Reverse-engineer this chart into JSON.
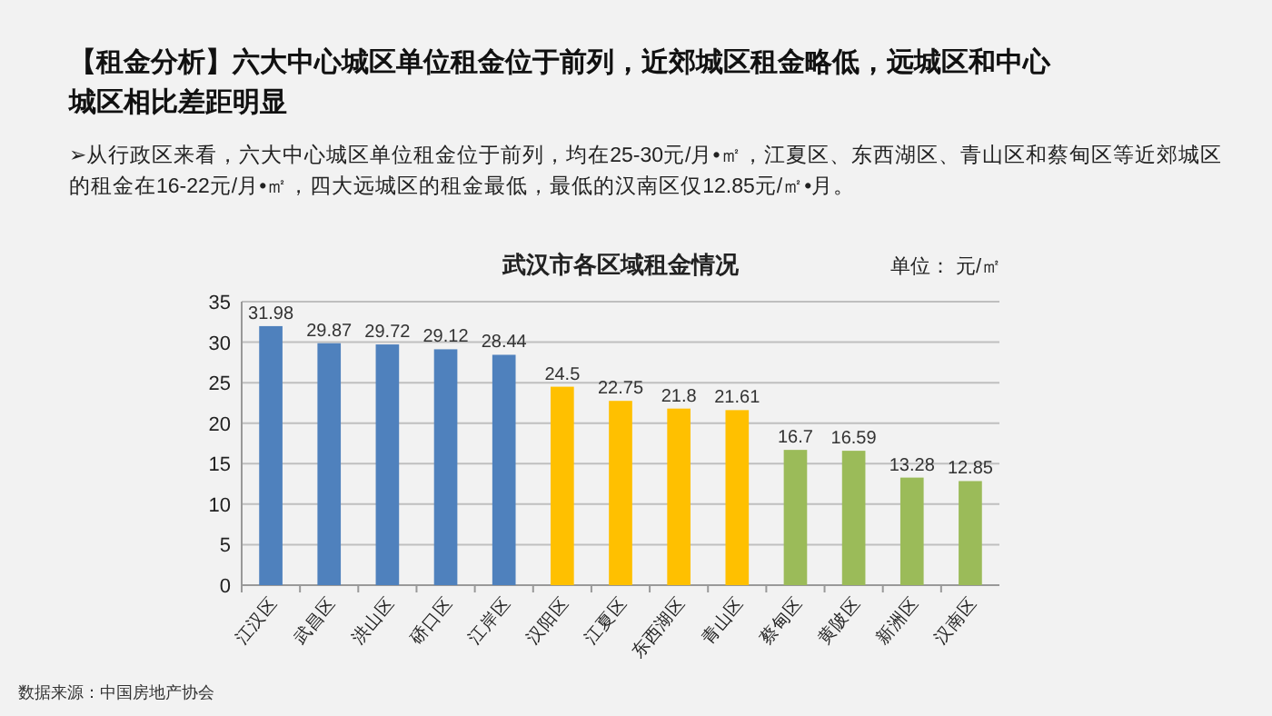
{
  "chart_data": {
    "type": "bar",
    "title": "武汉市各区域租金情况",
    "subtitle": "【租金分析】六大中心城区单位租金位于前列，近郊城区租金略低，远城区和中心城区相比差距明显",
    "annotations": [
      "➢从行政区来看，六大中心城区单位租金位于前列，均在25-30元/月•㎡，江夏区、东西湖区、青山区和蔡甸区等近郊城区的租金在16-22元/月•㎡，四大远城区的租金最低，最低的汉南区仅12.85元/㎡•月。",
      "单位： 元/㎡",
      "数据来源：中国房地产协会"
    ],
    "categories": [
      "江汉区",
      "武昌区",
      "洪山区",
      "硚口区",
      "江岸区",
      "汉阳区",
      "江夏区",
      "东西湖区",
      "青山区",
      "蔡甸区",
      "黄陂区",
      "新洲区",
      "汉南区"
    ],
    "values": [
      31.98,
      29.87,
      29.72,
      29.12,
      28.44,
      24.5,
      22.75,
      21.8,
      21.61,
      16.7,
      16.59,
      13.28,
      12.85
    ],
    "colors": [
      "#4f81bd",
      "#4f81bd",
      "#4f81bd",
      "#4f81bd",
      "#4f81bd",
      "#ffc000",
      "#ffc000",
      "#ffc000",
      "#ffc000",
      "#9bbb59",
      "#9bbb59",
      "#9bbb59",
      "#9bbb59"
    ],
    "ylim": [
      0,
      35
    ],
    "yticks": [
      0,
      5,
      10,
      15,
      20,
      25,
      30,
      35
    ],
    "grid": "y",
    "data_labels": true
  }
}
